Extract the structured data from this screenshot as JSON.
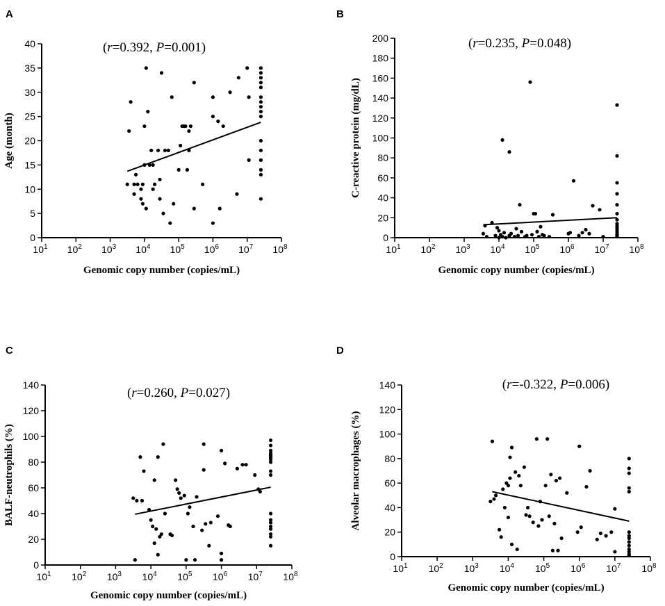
{
  "chart_data": [
    {
      "type": "scatter",
      "panel_label": "A",
      "xlabel": "Genomic copy number (copies/mL)",
      "ylabel": "Age (month)",
      "x_scale": "log10",
      "xlim_log10": [
        1,
        8
      ],
      "x_ticks_log10": [
        1,
        2,
        3,
        4,
        5,
        6,
        7,
        8
      ],
      "x_tick_base": "10",
      "ylim": [
        0,
        40
      ],
      "y_ticks": [
        0,
        5,
        10,
        15,
        20,
        25,
        30,
        35,
        40
      ],
      "annotation": {
        "r_label": "r",
        "r_value": "=0.392, ",
        "p_label": "P",
        "p_value": "=0.001",
        "open": "(",
        "close": ")"
      },
      "trend_line": {
        "x_log10": [
          3.5,
          7.4
        ],
        "y": [
          13.7,
          23.8
        ]
      },
      "points": [
        [
          3.5,
          11
        ],
        [
          3.55,
          22
        ],
        [
          3.6,
          28
        ],
        [
          3.7,
          11
        ],
        [
          3.7,
          9
        ],
        [
          3.75,
          13
        ],
        [
          3.8,
          11
        ],
        [
          3.9,
          10
        ],
        [
          3.9,
          8
        ],
        [
          3.95,
          11
        ],
        [
          3.95,
          7
        ],
        [
          4.0,
          23
        ],
        [
          4.0,
          15
        ],
        [
          4.05,
          35
        ],
        [
          4.05,
          6
        ],
        [
          4.1,
          26
        ],
        [
          4.15,
          15
        ],
        [
          4.2,
          18
        ],
        [
          4.25,
          15
        ],
        [
          4.25,
          10
        ],
        [
          4.3,
          11
        ],
        [
          4.4,
          18
        ],
        [
          4.45,
          8
        ],
        [
          4.45,
          12
        ],
        [
          4.5,
          34
        ],
        [
          4.55,
          5
        ],
        [
          4.6,
          18
        ],
        [
          4.7,
          18
        ],
        [
          4.75,
          3
        ],
        [
          4.8,
          29
        ],
        [
          4.85,
          7
        ],
        [
          5.0,
          14
        ],
        [
          5.05,
          19
        ],
        [
          5.1,
          23
        ],
        [
          5.15,
          23
        ],
        [
          5.2,
          23
        ],
        [
          5.25,
          14
        ],
        [
          5.3,
          22
        ],
        [
          5.3,
          18
        ],
        [
          5.35,
          23
        ],
        [
          5.45,
          32
        ],
        [
          5.45,
          6
        ],
        [
          5.7,
          11
        ],
        [
          6.0,
          29
        ],
        [
          6.0,
          25
        ],
        [
          6.0,
          3
        ],
        [
          6.15,
          24
        ],
        [
          6.2,
          6
        ],
        [
          6.3,
          23
        ],
        [
          6.5,
          30
        ],
        [
          6.7,
          9
        ],
        [
          6.75,
          33
        ],
        [
          7.0,
          35
        ],
        [
          7.05,
          29
        ],
        [
          7.05,
          16
        ],
        [
          7.4,
          35
        ],
        [
          7.4,
          34
        ],
        [
          7.4,
          33
        ],
        [
          7.4,
          32
        ],
        [
          7.4,
          31
        ],
        [
          7.4,
          29
        ],
        [
          7.4,
          28
        ],
        [
          7.4,
          27
        ],
        [
          7.4,
          26
        ],
        [
          7.4,
          25
        ],
        [
          7.4,
          20
        ],
        [
          7.4,
          18
        ],
        [
          7.4,
          16
        ],
        [
          7.4,
          14
        ],
        [
          7.4,
          13
        ],
        [
          7.4,
          8
        ]
      ]
    },
    {
      "type": "scatter",
      "panel_label": "B",
      "xlabel": "Genomic copy number (copies/mL)",
      "ylabel": "C-reactive protein (mg/dL)",
      "x_scale": "log10",
      "xlim_log10": [
        1,
        8
      ],
      "x_ticks_log10": [
        1,
        2,
        3,
        4,
        5,
        6,
        7,
        8
      ],
      "x_tick_base": "10",
      "ylim": [
        0,
        200
      ],
      "y_ticks": [
        0,
        20,
        40,
        60,
        80,
        100,
        120,
        140,
        160,
        180,
        200
      ],
      "annotation": {
        "r_label": "r",
        "r_value": "=0.235, ",
        "p_label": "P",
        "p_value": "=0.048",
        "open": "(",
        "close": ")"
      },
      "trend_line": {
        "x_log10": [
          3.55,
          7.4
        ],
        "y": [
          13,
          20
        ]
      },
      "points": [
        [
          3.55,
          4
        ],
        [
          3.6,
          12
        ],
        [
          3.65,
          1
        ],
        [
          3.8,
          15
        ],
        [
          3.9,
          2
        ],
        [
          3.95,
          10
        ],
        [
          4.0,
          7
        ],
        [
          4.0,
          0
        ],
        [
          4.05,
          3
        ],
        [
          4.1,
          98
        ],
        [
          4.1,
          1
        ],
        [
          4.15,
          5
        ],
        [
          4.2,
          0
        ],
        [
          4.3,
          86
        ],
        [
          4.3,
          2
        ],
        [
          4.35,
          4
        ],
        [
          4.45,
          1
        ],
        [
          4.5,
          9
        ],
        [
          4.55,
          2
        ],
        [
          4.6,
          33
        ],
        [
          4.65,
          6
        ],
        [
          4.75,
          1
        ],
        [
          4.8,
          2
        ],
        [
          4.9,
          156
        ],
        [
          4.95,
          3
        ],
        [
          5.0,
          24
        ],
        [
          5.05,
          24
        ],
        [
          5.1,
          6
        ],
        [
          5.15,
          1
        ],
        [
          5.2,
          11
        ],
        [
          5.25,
          3
        ],
        [
          5.3,
          2
        ],
        [
          5.45,
          1
        ],
        [
          5.55,
          23
        ],
        [
          6.0,
          4
        ],
        [
          6.05,
          5
        ],
        [
          6.15,
          57
        ],
        [
          6.3,
          2
        ],
        [
          6.4,
          5
        ],
        [
          6.5,
          8
        ],
        [
          6.6,
          4
        ],
        [
          6.7,
          32
        ],
        [
          6.9,
          28
        ],
        [
          7.0,
          1
        ],
        [
          7.4,
          133
        ],
        [
          7.4,
          82
        ],
        [
          7.4,
          55
        ],
        [
          7.4,
          44
        ],
        [
          7.4,
          33
        ],
        [
          7.4,
          24
        ],
        [
          7.4,
          18
        ],
        [
          7.4,
          14
        ],
        [
          7.4,
          12
        ],
        [
          7.4,
          10
        ],
        [
          7.4,
          8
        ],
        [
          7.4,
          6
        ],
        [
          7.4,
          4
        ],
        [
          7.4,
          3
        ],
        [
          7.4,
          2
        ],
        [
          7.4,
          1
        ]
      ]
    },
    {
      "type": "scatter",
      "panel_label": "C",
      "xlabel": "Genomic copy number (copies/mL)",
      "ylabel": "BALF-neutrophils (%)",
      "x_scale": "log10",
      "xlim_log10": [
        1,
        8
      ],
      "x_ticks_log10": [
        1,
        2,
        3,
        4,
        5,
        6,
        7,
        8
      ],
      "x_tick_base": "10",
      "ylim": [
        0,
        140
      ],
      "y_ticks": [
        0,
        20,
        40,
        60,
        80,
        100,
        120,
        140
      ],
      "annotation": {
        "r_label": "r",
        "r_value": "=0.260, ",
        "p_label": "P",
        "p_value": "=0.027",
        "open": "(",
        "close": ")"
      },
      "trend_line": {
        "x_log10": [
          3.55,
          7.4
        ],
        "y": [
          39.5,
          60.5
        ]
      },
      "points": [
        [
          3.5,
          52
        ],
        [
          3.55,
          4
        ],
        [
          3.6,
          50
        ],
        [
          3.7,
          84
        ],
        [
          3.75,
          50
        ],
        [
          3.8,
          73
        ],
        [
          3.95,
          43
        ],
        [
          4.0,
          35
        ],
        [
          4.05,
          30
        ],
        [
          4.1,
          66
        ],
        [
          4.1,
          17
        ],
        [
          4.15,
          28
        ],
        [
          4.2,
          8
        ],
        [
          4.2,
          84
        ],
        [
          4.25,
          22
        ],
        [
          4.3,
          24
        ],
        [
          4.35,
          94
        ],
        [
          4.4,
          40
        ],
        [
          4.55,
          24
        ],
        [
          4.6,
          23
        ],
        [
          4.7,
          66
        ],
        [
          4.75,
          59
        ],
        [
          4.8,
          56
        ],
        [
          4.85,
          52
        ],
        [
          4.95,
          54
        ],
        [
          5.0,
          4
        ],
        [
          5.05,
          40
        ],
        [
          5.1,
          45
        ],
        [
          5.2,
          30
        ],
        [
          5.25,
          4
        ],
        [
          5.3,
          53
        ],
        [
          5.45,
          27
        ],
        [
          5.5,
          94
        ],
        [
          5.5,
          74
        ],
        [
          5.55,
          32
        ],
        [
          5.65,
          15
        ],
        [
          5.7,
          33
        ],
        [
          5.9,
          38
        ],
        [
          6.0,
          89
        ],
        [
          6.0,
          9
        ],
        [
          6.0,
          4
        ],
        [
          6.1,
          79
        ],
        [
          6.2,
          31
        ],
        [
          6.25,
          30
        ],
        [
          6.45,
          75
        ],
        [
          6.6,
          78
        ],
        [
          6.7,
          78
        ],
        [
          6.95,
          70
        ],
        [
          7.05,
          59
        ],
        [
          7.1,
          57
        ],
        [
          7.4,
          97
        ],
        [
          7.4,
          93
        ],
        [
          7.4,
          89
        ],
        [
          7.4,
          87
        ],
        [
          7.4,
          86
        ],
        [
          7.4,
          85
        ],
        [
          7.4,
          84
        ],
        [
          7.4,
          83
        ],
        [
          7.4,
          82
        ],
        [
          7.4,
          80
        ],
        [
          7.4,
          73
        ],
        [
          7.4,
          70
        ],
        [
          7.4,
          40
        ],
        [
          7.4,
          35
        ],
        [
          7.4,
          33
        ],
        [
          7.4,
          30
        ],
        [
          7.4,
          28
        ],
        [
          7.4,
          24
        ],
        [
          7.4,
          22
        ],
        [
          7.4,
          15
        ]
      ]
    },
    {
      "type": "scatter",
      "panel_label": "D",
      "xlabel": "Genomic copy number (copies/mL)",
      "ylabel": "Alveolar macrophages (%)",
      "x_scale": "log10",
      "xlim_log10": [
        1,
        8
      ],
      "x_ticks_log10": [
        1,
        2,
        3,
        4,
        5,
        6,
        7,
        8
      ],
      "x_tick_base": "10",
      "ylim": [
        0,
        140
      ],
      "y_ticks": [
        0,
        20,
        40,
        60,
        80,
        100,
        120,
        140
      ],
      "annotation": {
        "r_label": "r",
        "r_value": "=-0.322, ",
        "p_label": "P",
        "p_value": "=0.006",
        "open": "(",
        "close": ")"
      },
      "trend_line": {
        "x_log10": [
          3.55,
          7.4
        ],
        "y": [
          53,
          29
        ]
      },
      "points": [
        [
          3.5,
          45
        ],
        [
          3.55,
          94
        ],
        [
          3.6,
          47
        ],
        [
          3.65,
          50
        ],
        [
          3.75,
          22
        ],
        [
          3.8,
          16
        ],
        [
          3.85,
          55
        ],
        [
          3.9,
          40
        ],
        [
          3.95,
          60
        ],
        [
          4.0,
          58
        ],
        [
          4.0,
          32
        ],
        [
          4.05,
          81
        ],
        [
          4.05,
          64
        ],
        [
          4.1,
          89
        ],
        [
          4.1,
          10
        ],
        [
          4.2,
          69
        ],
        [
          4.25,
          6
        ],
        [
          4.3,
          66
        ],
        [
          4.35,
          58
        ],
        [
          4.45,
          73
        ],
        [
          4.5,
          34
        ],
        [
          4.55,
          40
        ],
        [
          4.6,
          33
        ],
        [
          4.7,
          28
        ],
        [
          4.8,
          96
        ],
        [
          4.85,
          25
        ],
        [
          4.9,
          45
        ],
        [
          4.95,
          30
        ],
        [
          5.05,
          58
        ],
        [
          5.1,
          96
        ],
        [
          5.15,
          33
        ],
        [
          5.2,
          67
        ],
        [
          5.25,
          5
        ],
        [
          5.3,
          27
        ],
        [
          5.35,
          62
        ],
        [
          5.4,
          5
        ],
        [
          5.45,
          64
        ],
        [
          5.5,
          15
        ],
        [
          5.65,
          52
        ],
        [
          5.95,
          20
        ],
        [
          6.0,
          90
        ],
        [
          6.05,
          24
        ],
        [
          6.2,
          57
        ],
        [
          6.3,
          70
        ],
        [
          6.5,
          14
        ],
        [
          6.6,
          19
        ],
        [
          6.75,
          17
        ],
        [
          6.9,
          20
        ],
        [
          7.0,
          39
        ],
        [
          7.0,
          4
        ],
        [
          7.4,
          80
        ],
        [
          7.4,
          72
        ],
        [
          7.4,
          68
        ],
        [
          7.4,
          56
        ],
        [
          7.4,
          53
        ],
        [
          7.4,
          20
        ],
        [
          7.4,
          17
        ],
        [
          7.4,
          15
        ],
        [
          7.4,
          12
        ],
        [
          7.4,
          9
        ],
        [
          7.4,
          6
        ],
        [
          7.4,
          4
        ],
        [
          7.4,
          2
        ],
        [
          7.4,
          1
        ]
      ]
    }
  ]
}
